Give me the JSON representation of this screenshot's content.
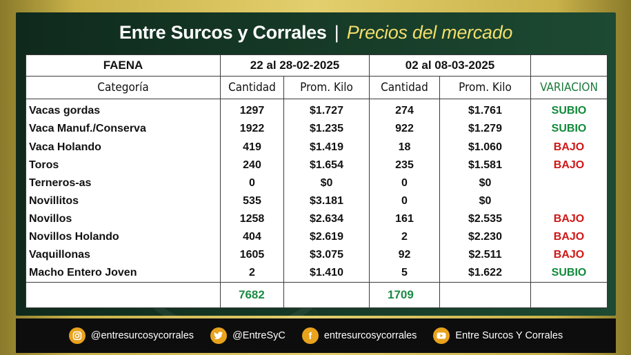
{
  "title": {
    "main": "Entre Surcos y Corrales",
    "separator": "|",
    "subtitle": "Precios del mercado"
  },
  "table": {
    "header_top": [
      "FAENA",
      "22 al 28-02-2025",
      "02 al 08-03-2025",
      ""
    ],
    "header_cols": [
      "Categoría",
      "Cantidad",
      "Prom. Kilo",
      "Cantidad",
      "Prom. Kilo",
      "VARIACION"
    ],
    "rows": [
      {
        "cat": "Vacas gordas",
        "q1": "1297",
        "p1": "$1.727",
        "q2": "274",
        "p2": "$1.761",
        "var": "SUBIO",
        "dir": "up"
      },
      {
        "cat": "Vaca Manuf./Conserva",
        "q1": "1922",
        "p1": "$1.235",
        "q2": "922",
        "p2": "$1.279",
        "var": "SUBIO",
        "dir": "up"
      },
      {
        "cat": "Vaca Holando",
        "q1": "419",
        "p1": "$1.419",
        "q2": "18",
        "p2": "$1.060",
        "var": "BAJO",
        "dir": "down"
      },
      {
        "cat": "Toros",
        "q1": "240",
        "p1": "$1.654",
        "q2": "235",
        "p2": "$1.581",
        "var": "BAJO",
        "dir": "down"
      },
      {
        "cat": "Terneros-as",
        "q1": "0",
        "p1": "$0",
        "q2": "0",
        "p2": "$0",
        "var": "",
        "dir": ""
      },
      {
        "cat": "Novillitos",
        "q1": "535",
        "p1": "$3.181",
        "q2": "0",
        "p2": "$0",
        "var": "",
        "dir": ""
      },
      {
        "cat": "Novillos",
        "q1": "1258",
        "p1": "$2.634",
        "q2": "161",
        "p2": "$2.535",
        "var": "BAJO",
        "dir": "down"
      },
      {
        "cat": "Novillos Holando",
        "q1": "404",
        "p1": "$2.619",
        "q2": "2",
        "p2": "$2.230",
        "var": "BAJO",
        "dir": "down"
      },
      {
        "cat": "Vaquillonas",
        "q1": "1605",
        "p1": "$3.075",
        "q2": "92",
        "p2": "$2.511",
        "var": "BAJO",
        "dir": "down"
      },
      {
        "cat": "Macho Entero Joven",
        "q1": "2",
        "p1": "$1.410",
        "q2": "5",
        "p2": "$1.622",
        "var": "SUBIO",
        "dir": "up"
      }
    ],
    "totals": {
      "q1": "7682",
      "q2": "1709"
    }
  },
  "colors": {
    "up": "#11893a",
    "down": "#d01616",
    "accent": "#f2de6a"
  },
  "footer": [
    {
      "icon": "instagram-icon",
      "handle": "@entresurcosycorrales"
    },
    {
      "icon": "twitter-icon",
      "handle": "@EntreSyC"
    },
    {
      "icon": "facebook-icon",
      "handle": "entresurcosycorrales"
    },
    {
      "icon": "youtube-icon",
      "handle": "Entre Surcos Y Corrales"
    }
  ]
}
